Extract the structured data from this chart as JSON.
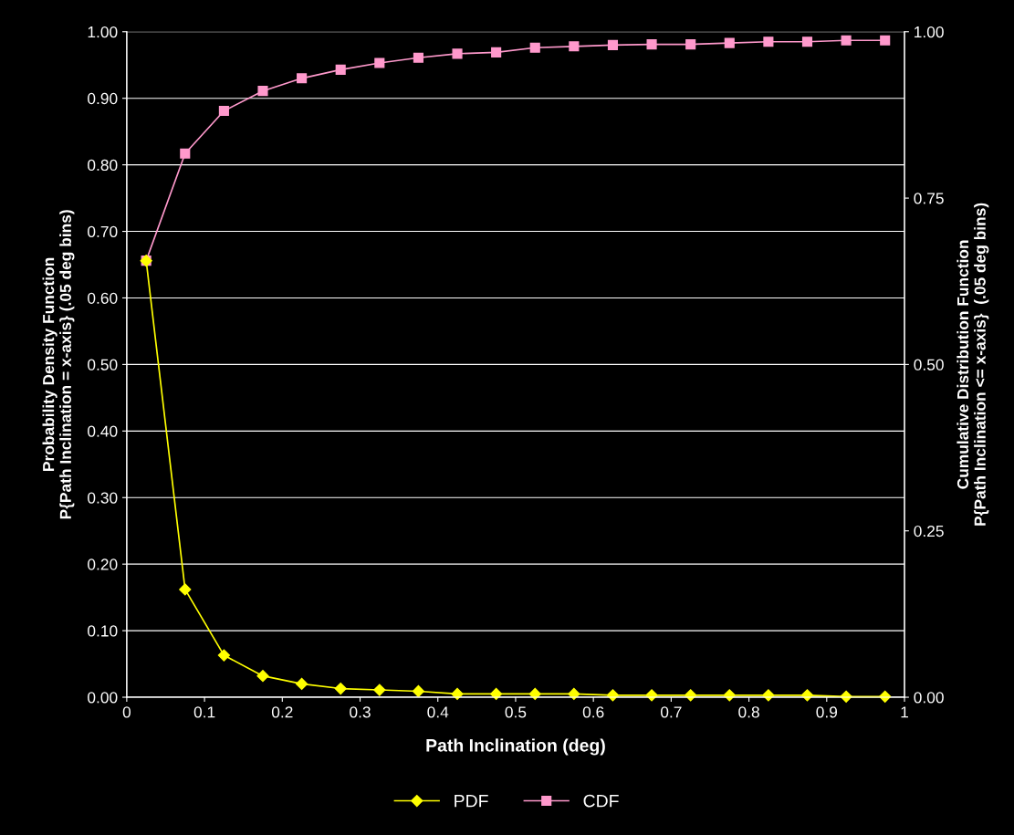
{
  "chart_data": {
    "type": "line",
    "xlabel": "Path Inclination (deg)",
    "ylabel": "Probability Density Function\nP{Path Inclination = x-axis} (.05 deg bins)",
    "y2label": "Cumulative Distribution Function\nP{Path Inclination <= x-axis}  (.05 deg bins)",
    "x": [
      0.025,
      0.075,
      0.125,
      0.175,
      0.225,
      0.275,
      0.325,
      0.375,
      0.425,
      0.475,
      0.525,
      0.575,
      0.625,
      0.675,
      0.725,
      0.775,
      0.825,
      0.875,
      0.925,
      0.975
    ],
    "series": [
      {
        "name": "PDF",
        "color": "#ffff00",
        "marker": "diamond",
        "values": [
          0.656,
          0.162,
          0.063,
          0.032,
          0.02,
          0.013,
          0.011,
          0.009,
          0.005,
          0.005,
          0.005,
          0.005,
          0.003,
          0.003,
          0.003,
          0.003,
          0.003,
          0.003,
          0.001,
          0.001
        ]
      },
      {
        "name": "CDF",
        "color": "#ff99cc",
        "marker": "square",
        "values": [
          0.656,
          0.817,
          0.881,
          0.911,
          0.93,
          0.943,
          0.953,
          0.961,
          0.967,
          0.969,
          0.976,
          0.978,
          0.98,
          0.981,
          0.981,
          0.983,
          0.985,
          0.985,
          0.987,
          0.987
        ]
      }
    ],
    "xlim": [
      0,
      1
    ],
    "xticks": [
      0,
      0.1,
      0.2,
      0.3,
      0.4,
      0.5,
      0.6,
      0.7,
      0.8,
      0.9,
      1
    ],
    "ylim": [
      0,
      1
    ],
    "yticks": [
      {
        "value": 0,
        "label": "0.00"
      },
      {
        "value": 0.1,
        "label": "0.10"
      },
      {
        "value": 0.2,
        "label": "0.20"
      },
      {
        "value": 0.3,
        "label": "0.30"
      },
      {
        "value": 0.4,
        "label": "0.40"
      },
      {
        "value": 0.5,
        "label": "0.50"
      },
      {
        "value": 0.6,
        "label": "0.60"
      },
      {
        "value": 0.7,
        "label": "0.70"
      },
      {
        "value": 0.8,
        "label": "0.80"
      },
      {
        "value": 0.9,
        "label": "0.90"
      },
      {
        "value": 1,
        "label": "1.00"
      }
    ],
    "y2lim": [
      0,
      1
    ],
    "y2ticks": [
      {
        "value": 0,
        "label": "0.00"
      },
      {
        "value": 0.25,
        "label": "0.25"
      },
      {
        "value": 0.5,
        "label": "0.50"
      },
      {
        "value": 0.75,
        "label": "0.75"
      },
      {
        "value": 1,
        "label": "1.00"
      }
    ],
    "grid": "y",
    "legend": "bottom",
    "line_style": "solid"
  }
}
